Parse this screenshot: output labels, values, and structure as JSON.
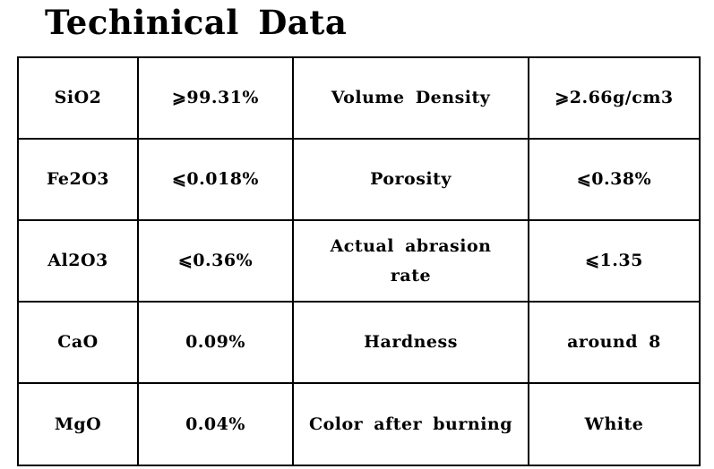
{
  "title": "Techinical  Data",
  "rows": [
    {
      "prop1": "SiO2",
      "val1": "⩾99.31%",
      "prop2": "Volume  Density",
      "val2": "⩾2.66g/cm3"
    },
    {
      "prop1": "Fe2O3",
      "val1": "⩽0.018%",
      "prop2": "Porosity",
      "val2": "⩽0.38%"
    },
    {
      "prop1": "Al2O3",
      "val1": "⩽0.36%",
      "prop2": "Actual  abrasion rate",
      "val2": "⩽1.35"
    },
    {
      "prop1": "CaO",
      "val1": "0.09%",
      "prop2": "Hardness",
      "val2": "around  8"
    },
    {
      "prop1": "MgO",
      "val1": "0.04%",
      "prop2": "Color  after  burning",
      "val2": "White"
    }
  ]
}
